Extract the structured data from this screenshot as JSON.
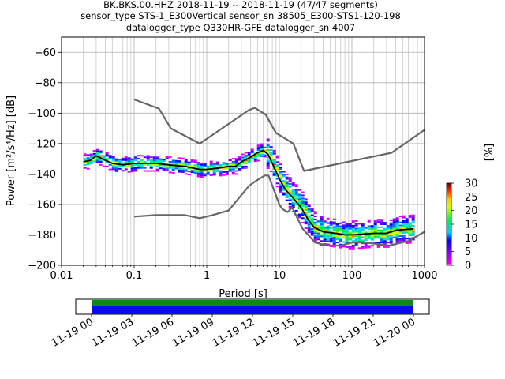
{
  "title": {
    "line1": "BK.BKS.00.HHZ   2018-11-19 -- 2018-11-19  (47/47 segments)",
    "line2": "sensor_type STS-1_E300Vertical sensor_sn 38505_E300-STS1-120-198",
    "line3": "datalogger_type Q330HR-GFE datalogger_sn 4007"
  },
  "chart_data": [
    {
      "type": "heatmap",
      "xlabel": "Period [s]",
      "ylabel": "Power [m²/s⁴/Hz] [dB]",
      "x_scale": "log",
      "xlim": [
        0.01,
        1000
      ],
      "ylim": [
        -200,
        -50
      ],
      "grid": true,
      "x_ticks": [
        {
          "value": 0.01,
          "label": "0.01"
        },
        {
          "value": 0.1,
          "label": "0.1"
        },
        {
          "value": 1,
          "label": "1"
        },
        {
          "value": 10,
          "label": "10"
        },
        {
          "value": 100,
          "label": "100"
        },
        {
          "value": 1000,
          "label": "1000"
        }
      ],
      "y_ticks": [
        -60,
        -80,
        -100,
        -120,
        -140,
        -160,
        -180,
        -200
      ],
      "noise_model_high": [
        [
          0.1,
          -91
        ],
        [
          0.22,
          -97
        ],
        [
          0.32,
          -110
        ],
        [
          0.8,
          -120
        ],
        [
          3.8,
          -98
        ],
        [
          4.6,
          -96.5
        ],
        [
          6.5,
          -101
        ],
        [
          9,
          -113
        ],
        [
          15.6,
          -120
        ],
        [
          21.9,
          -138
        ],
        [
          354,
          -126
        ],
        [
          1000,
          -111
        ]
      ],
      "noise_model_low": [
        [
          0.1,
          -168
        ],
        [
          0.2,
          -167
        ],
        [
          0.5,
          -167
        ],
        [
          0.8,
          -169
        ],
        [
          1.2,
          -167
        ],
        [
          2,
          -164
        ],
        [
          3.8,
          -148
        ],
        [
          4.6,
          -145
        ],
        [
          6.3,
          -141
        ],
        [
          7.1,
          -141
        ],
        [
          10,
          -160
        ],
        [
          11,
          -163
        ],
        [
          13,
          -165
        ],
        [
          15,
          -162
        ],
        [
          21,
          -176
        ],
        [
          31,
          -185
        ],
        [
          45,
          -187
        ],
        [
          70,
          -187
        ],
        [
          101,
          -185
        ],
        [
          154,
          -185
        ],
        [
          328,
          -187
        ],
        [
          600,
          -184
        ],
        [
          1000,
          -178
        ]
      ],
      "mean_psd": [
        [
          0.02,
          -132
        ],
        [
          0.025,
          -131
        ],
        [
          0.03,
          -128
        ],
        [
          0.04,
          -131
        ],
        [
          0.05,
          -133
        ],
        [
          0.07,
          -134
        ],
        [
          0.1,
          -133
        ],
        [
          0.15,
          -133
        ],
        [
          0.2,
          -133
        ],
        [
          0.3,
          -134
        ],
        [
          0.5,
          -135
        ],
        [
          0.8,
          -137
        ],
        [
          1,
          -137
        ],
        [
          1.5,
          -136
        ],
        [
          2,
          -135
        ],
        [
          2.5,
          -135
        ],
        [
          3,
          -132
        ],
        [
          4,
          -129
        ],
        [
          5,
          -126
        ],
        [
          6,
          -124.5
        ],
        [
          7,
          -127
        ],
        [
          8,
          -133
        ],
        [
          10,
          -143
        ],
        [
          12,
          -150
        ],
        [
          15,
          -155
        ],
        [
          20,
          -162
        ],
        [
          25,
          -170
        ],
        [
          30,
          -175
        ],
        [
          40,
          -178
        ],
        [
          60,
          -179
        ],
        [
          80,
          -180
        ],
        [
          100,
          -180
        ],
        [
          200,
          -179
        ],
        [
          300,
          -179
        ],
        [
          400,
          -177
        ],
        [
          700,
          -176
        ]
      ],
      "colorbar": {
        "label": "[%]",
        "min": 0,
        "max": 30,
        "ticks": [
          0,
          5,
          10,
          15,
          20,
          25,
          30
        ]
      }
    },
    {
      "type": "timeline",
      "tick_labels": [
        "11-19 00",
        "11-19 03",
        "11-19 06",
        "11-19 09",
        "11-19 12",
        "11-19 15",
        "11-19 18",
        "11-19 21",
        "11-20 00"
      ],
      "coverage_colors": {
        "data": "#0a0af0",
        "gaps_none": "#118811"
      },
      "coverage": [
        [
          0,
          24
        ]
      ]
    }
  ]
}
